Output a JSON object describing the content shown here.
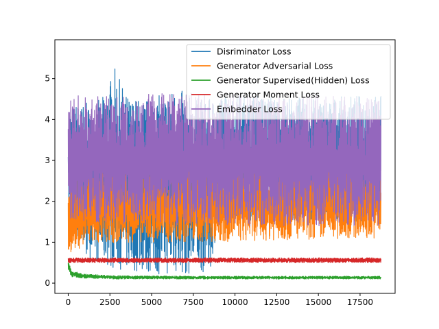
{
  "chart_data": {
    "type": "line",
    "title": "",
    "xlabel": "",
    "ylabel": "",
    "xlim": [
      -800,
      19600
    ],
    "ylim": [
      -0.25,
      5.95
    ],
    "xticks": [
      0,
      2500,
      5000,
      7500,
      10000,
      12500,
      15000,
      17500
    ],
    "xtick_labels": [
      "0",
      "2500",
      "5000",
      "7500",
      "10000",
      "12500",
      "15000",
      "17500"
    ],
    "yticks": [
      0,
      1,
      2,
      3,
      4,
      5
    ],
    "ytick_labels": [
      "0",
      "1",
      "2",
      "3",
      "4",
      "5"
    ],
    "grid": false,
    "legend_position": "top-right",
    "n_points": 18750,
    "series": [
      {
        "name": "Disriminator Loss",
        "color": "#1f77b4",
        "envelope": {
          "x": [
            0,
            500,
            1000,
            2000,
            2800,
            3500,
            4500,
            5500,
            6500,
            7500,
            8500,
            9000,
            12000,
            15000,
            17500,
            18750
          ],
          "low": [
            1.6,
            0.9,
            0.6,
            0.45,
            0.35,
            0.3,
            0.25,
            0.2,
            0.2,
            0.2,
            0.3,
            1.5,
            1.5,
            1.5,
            1.5,
            1.5
          ],
          "high": [
            4.3,
            4.4,
            4.4,
            4.5,
            5.25,
            4.6,
            4.5,
            4.6,
            4.8,
            4.5,
            4.5,
            4.6,
            4.6,
            4.5,
            4.6,
            4.6
          ]
        }
      },
      {
        "name": "Generator Adversarial Loss",
        "color": "#ff7f0e",
        "envelope": {
          "x": [
            0,
            300,
            1000,
            3000,
            6000,
            9000,
            12000,
            14500,
            15000,
            17500,
            18750
          ],
          "low": [
            0.7,
            0.8,
            0.9,
            1.0,
            1.0,
            1.0,
            1.05,
            1.05,
            1.05,
            1.1,
            1.1
          ],
          "high": [
            2.5,
            2.6,
            2.7,
            2.8,
            2.8,
            2.9,
            2.9,
            3.0,
            3.0,
            3.0,
            3.0
          ]
        }
      },
      {
        "name": "Generator Supervised(Hidden) Loss",
        "color": "#2ca02c",
        "envelope": {
          "x": [
            0,
            200,
            1000,
            3000,
            8000,
            18750
          ],
          "low": [
            0.3,
            0.15,
            0.12,
            0.1,
            0.1,
            0.1
          ],
          "high": [
            0.55,
            0.3,
            0.22,
            0.18,
            0.17,
            0.17
          ]
        }
      },
      {
        "name": "Generator Moment Loss",
        "color": "#d62728",
        "envelope": {
          "x": [
            0,
            18750
          ],
          "low": [
            0.5,
            0.5
          ],
          "high": [
            0.62,
            0.62
          ]
        }
      },
      {
        "name": "Embedder Loss",
        "color": "#9467bd",
        "envelope": {
          "x": [
            0,
            500,
            1000,
            3000,
            6000,
            9000,
            12000,
            15000,
            18750
          ],
          "low": [
            1.6,
            1.55,
            1.5,
            1.45,
            1.4,
            1.4,
            1.4,
            1.4,
            1.4
          ],
          "high": [
            4.4,
            4.6,
            4.55,
            4.6,
            4.7,
            4.6,
            4.6,
            4.6,
            4.5
          ]
        }
      }
    ]
  }
}
